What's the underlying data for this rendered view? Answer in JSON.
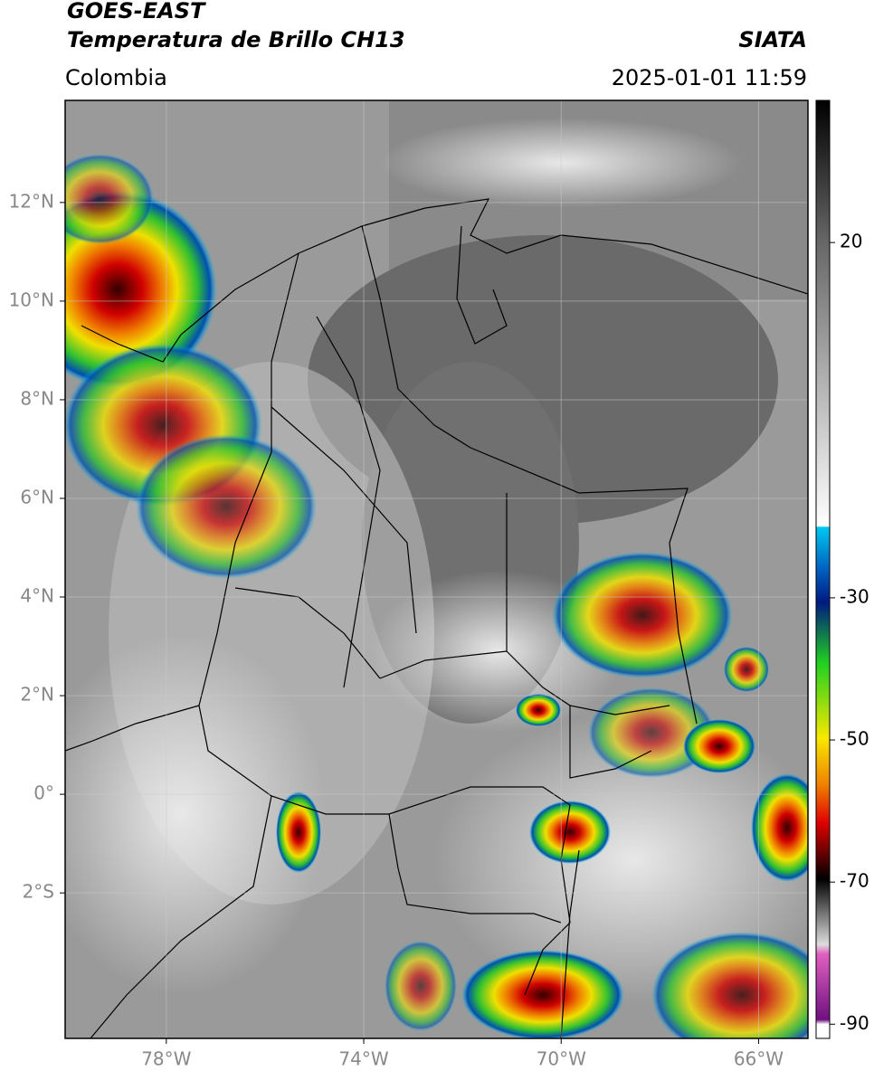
{
  "header": {
    "satellite": "GOES-EAST",
    "product": "Temperatura de Brillo CH13",
    "source": "SIATA",
    "region": "Colombia",
    "datetime": "2025-01-01 11:59"
  },
  "map": {
    "xlim": [
      -80.05,
      -65.0
    ],
    "ylim": [
      -4.95,
      14.07
    ],
    "grid": true,
    "xticks": [
      {
        "value": -78,
        "label": "78°W"
      },
      {
        "value": -74,
        "label": "74°W"
      },
      {
        "value": -70,
        "label": "70°W"
      },
      {
        "value": -66,
        "label": "66°W"
      }
    ],
    "yticks": [
      {
        "value": 12,
        "label": "12°N"
      },
      {
        "value": 10,
        "label": "10°N"
      },
      {
        "value": 8,
        "label": "8°N"
      },
      {
        "value": 6,
        "label": "6°N"
      },
      {
        "value": 4,
        "label": "4°N"
      },
      {
        "value": 2,
        "label": "2°N"
      },
      {
        "value": 0,
        "label": "0°"
      },
      {
        "value": -2,
        "label": "2°S"
      }
    ]
  },
  "colorbar": {
    "lim": [
      -92,
      40
    ],
    "ticks": [
      20,
      -30,
      -50,
      -70,
      -90
    ]
  }
}
